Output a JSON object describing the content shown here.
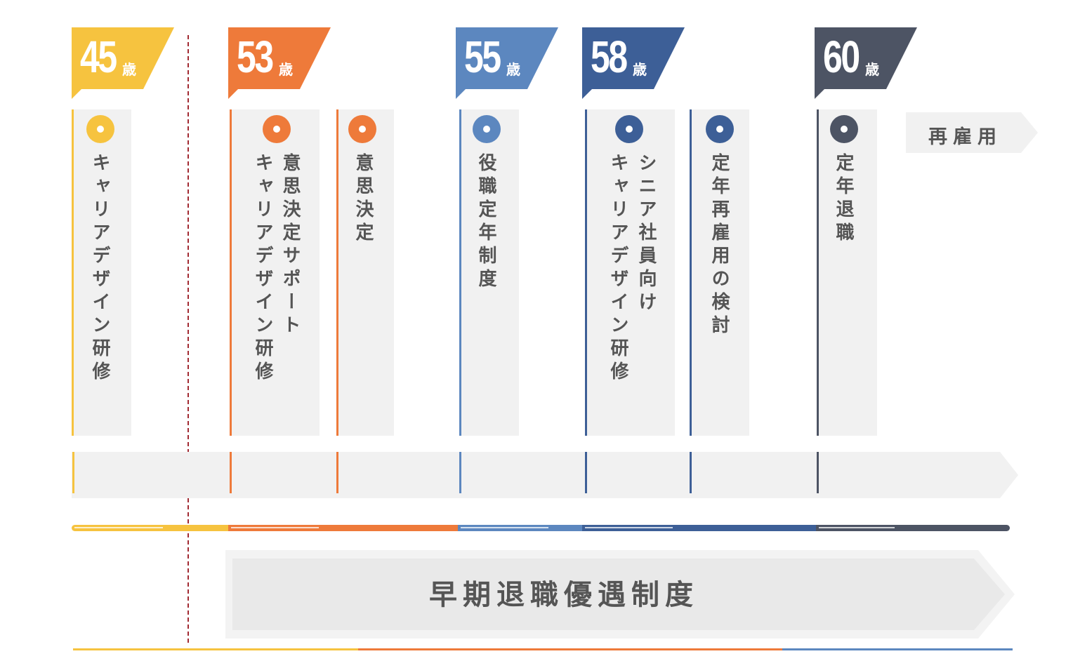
{
  "colors": {
    "yellow": "#f6c33f",
    "orange": "#ee7a3a",
    "light_blue": "#5c87bf",
    "mid_blue": "#3d5f97",
    "dark_slate": "#4d5464",
    "card_bg": "#f1f1f1",
    "text_gray": "#555555",
    "dashed_marker": "#a22b33"
  },
  "ages": [
    {
      "number": "45",
      "unit": "歳"
    },
    {
      "number": "53",
      "unit": "歳"
    },
    {
      "number": "55",
      "unit": "歳"
    },
    {
      "number": "58",
      "unit": "歳"
    },
    {
      "number": "60",
      "unit": "歳"
    }
  ],
  "events": [
    {
      "lines": [
        "キャリアデザイン研修"
      ]
    },
    {
      "lines": [
        "意思決定サポート",
        "キャリアデザイン研修"
      ]
    },
    {
      "lines": [
        "意思決定"
      ]
    },
    {
      "lines": [
        "役職定年制度"
      ]
    },
    {
      "lines": [
        "シニア社員向け",
        "キャリアデザイン研修"
      ]
    },
    {
      "lines": [
        "定年再雇用の検討"
      ]
    },
    {
      "lines": [
        "定年退職"
      ]
    }
  ],
  "rehire_label": "再雇用",
  "early_retirement_label": "早期退職優遇制度"
}
